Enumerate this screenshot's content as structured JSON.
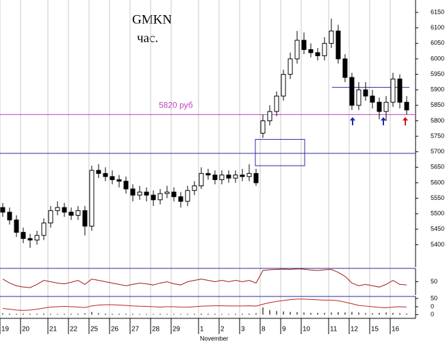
{
  "chart_data": [
    {
      "type": "candlestick",
      "title": "GMKN",
      "subtitle": "час.",
      "categories": [
        "19",
        null,
        null,
        "20",
        null,
        null,
        null,
        "21",
        null,
        null,
        "22",
        null,
        null,
        "25",
        null,
        null,
        "26",
        null,
        null,
        "27",
        null,
        null,
        "28",
        null,
        null,
        "29",
        null,
        null,
        null,
        "1",
        null,
        null,
        "2",
        null,
        null,
        "3",
        null,
        null,
        "8",
        null,
        null,
        "9",
        null,
        null,
        "10",
        null,
        null,
        null,
        "11",
        null,
        null,
        "12",
        null,
        null,
        "15",
        null,
        null,
        "16",
        null,
        null
      ],
      "month_label": "November",
      "open": [
        5520,
        5505,
        5480,
        5440,
        5420,
        5415,
        5430,
        5470,
        5510,
        5520,
        5505,
        5495,
        5510,
        5460,
        5640,
        5630,
        5620,
        5610,
        5605,
        5580,
        5560,
        5570,
        5560,
        5545,
        5565,
        5570,
        5555,
        5540,
        5575,
        5590,
        5630,
        5625,
        5610,
        5625,
        5615,
        5625,
        5620,
        5630,
        5760,
        5800,
        5830,
        5880,
        5950,
        6000,
        6060,
        6030,
        6020,
        6010,
        6050,
        6090,
        6000,
        5940,
        5850,
        5900,
        5880,
        5860,
        5830,
        5860,
        5935,
        5860
      ],
      "high": [
        5535,
        5520,
        5495,
        5455,
        5435,
        5445,
        5485,
        5525,
        5540,
        5535,
        5520,
        5525,
        5525,
        5655,
        5660,
        5650,
        5640,
        5625,
        5620,
        5595,
        5590,
        5585,
        5575,
        5580,
        5590,
        5585,
        5570,
        5590,
        5605,
        5650,
        5645,
        5640,
        5640,
        5640,
        5640,
        5645,
        5660,
        5645,
        5820,
        5850,
        5895,
        5965,
        6020,
        6090,
        6085,
        6050,
        6035,
        6070,
        6130,
        6110,
        6015,
        5955,
        5925,
        5925,
        5900,
        5875,
        5880,
        5955,
        5950,
        5880
      ],
      "low": [
        5490,
        5465,
        5425,
        5405,
        5390,
        5400,
        5415,
        5455,
        5495,
        5490,
        5480,
        5480,
        5430,
        5445,
        5615,
        5605,
        5595,
        5585,
        5565,
        5540,
        5545,
        5540,
        5525,
        5530,
        5550,
        5540,
        5520,
        5525,
        5560,
        5580,
        5610,
        5595,
        5595,
        5600,
        5600,
        5605,
        5605,
        5590,
        5745,
        5785,
        5815,
        5865,
        5935,
        5985,
        6015,
        6005,
        5995,
        5995,
        6035,
        5985,
        5925,
        5835,
        5835,
        5865,
        5840,
        5805,
        5800,
        5845,
        5840,
        5820
      ],
      "close": [
        5505,
        5480,
        5440,
        5420,
        5415,
        5430,
        5470,
        5510,
        5520,
        5505,
        5495,
        5510,
        5460,
        5640,
        5630,
        5620,
        5610,
        5605,
        5580,
        5560,
        5570,
        5560,
        5545,
        5565,
        5570,
        5555,
        5540,
        5575,
        5590,
        5630,
        5625,
        5610,
        5625,
        5615,
        5625,
        5620,
        5630,
        5600,
        5800,
        5830,
        5880,
        5950,
        6000,
        6060,
        6030,
        6020,
        6010,
        6050,
        6090,
        6000,
        5940,
        5850,
        5900,
        5880,
        5860,
        5830,
        5860,
        5935,
        5860,
        5835
      ],
      "ylim": [
        5328,
        6190
      ],
      "yticks": [
        6150,
        6100,
        6050,
        6000,
        5950,
        5900,
        5850,
        5800,
        5750,
        5700,
        5650,
        5600,
        5550,
        5500,
        5450,
        5400
      ],
      "level_label": "5820 руб",
      "hlines": [
        {
          "value": 5820,
          "color": "#c040c0"
        },
        {
          "value": 5695,
          "color": "#2828a0"
        }
      ],
      "resistance": {
        "value": 5908,
        "color": "#2828a0"
      },
      "box": {
        "low": 5655,
        "high": 5740,
        "color": "#2828a0"
      }
    },
    {
      "type": "line",
      "color": "#a01818",
      "values": [
        60,
        45,
        35,
        30,
        28,
        40,
        55,
        50,
        45,
        42,
        48,
        55,
        40,
        60,
        55,
        50,
        45,
        40,
        35,
        40,
        45,
        42,
        38,
        45,
        50,
        42,
        38,
        50,
        55,
        60,
        55,
        50,
        55,
        50,
        55,
        50,
        55,
        45,
        92,
        95,
        96,
        97,
        96,
        98,
        97,
        94,
        92,
        95,
        96,
        85,
        70,
        45,
        35,
        40,
        35,
        30,
        40,
        55,
        40,
        38
      ],
      "ylim": [
        0,
        100
      ],
      "yticks": [
        50
      ]
    },
    {
      "type": "line",
      "series": [
        {
          "color": "#c02020",
          "values": [
            -10,
            -15,
            -20,
            -22,
            -20,
            -15,
            -8,
            -2,
            0,
            2,
            0,
            -2,
            -5,
            5,
            10,
            12,
            12,
            10,
            8,
            5,
            3,
            2,
            0,
            -2,
            0,
            0,
            -2,
            -3,
            0,
            3,
            5,
            6,
            6,
            5,
            5,
            5,
            6,
            4,
            15,
            25,
            32,
            38,
            43,
            46,
            46,
            44,
            42,
            40,
            40,
            36,
            28,
            18,
            8,
            4,
            0,
            -4,
            -6,
            -2,
            0,
            -2
          ]
        },
        {
          "color": "#707070",
          "axis": "y2",
          "values": [
            8,
            6,
            5,
            6,
            5,
            5,
            6,
            5,
            4,
            5,
            5,
            5,
            8,
            15,
            8,
            6,
            5,
            5,
            5,
            5,
            4,
            4,
            4,
            5,
            4,
            4,
            4,
            5,
            5,
            6,
            5,
            5,
            4,
            4,
            5,
            5,
            6,
            8,
            40,
            25,
            20,
            18,
            15,
            14,
            12,
            10,
            10,
            10,
            12,
            14,
            12,
            15,
            12,
            8,
            8,
            10,
            12,
            10,
            8,
            6
          ]
        }
      ],
      "ylim": [
        -70,
        62
      ],
      "yticks": [
        50,
        0
      ],
      "y2lim": [
        -20,
        100
      ],
      "y2ticks": [
        0
      ]
    }
  ]
}
